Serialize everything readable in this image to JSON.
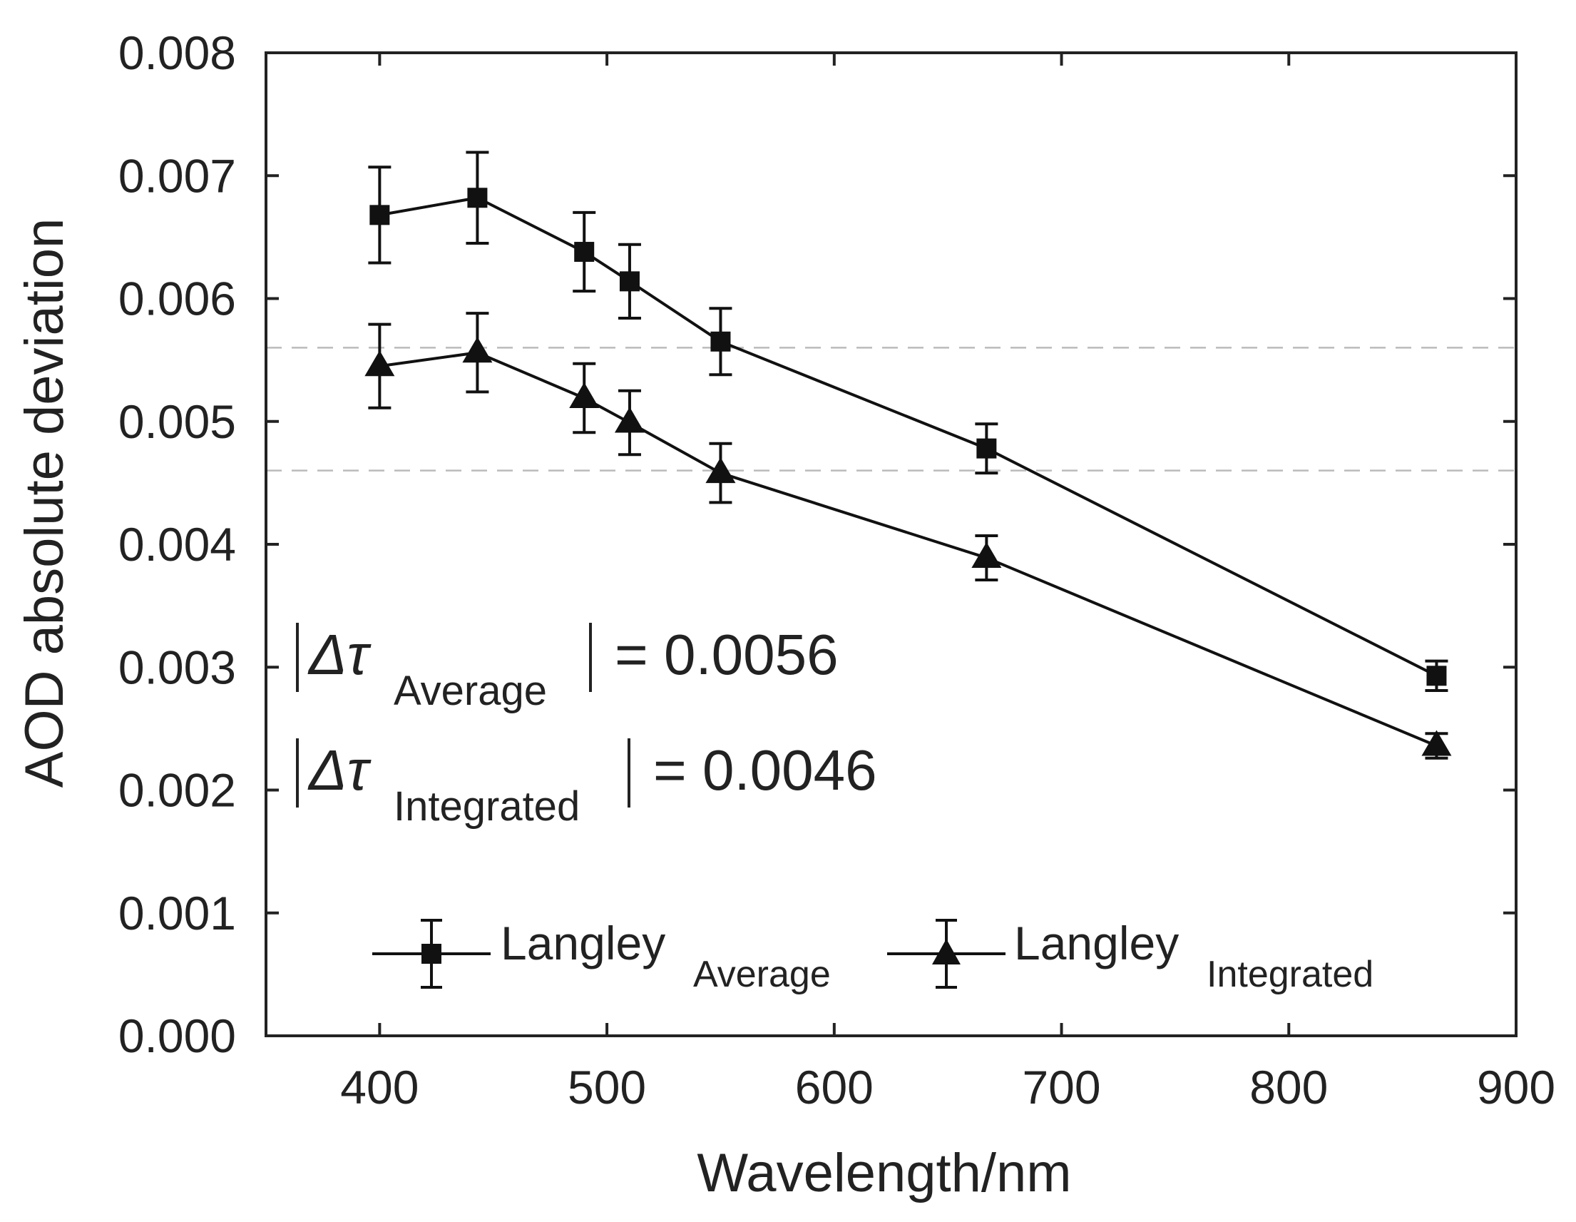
{
  "chart_data": {
    "type": "line",
    "xlabel": "Wavelength/nm",
    "ylabel": "AOD absolute deviation",
    "xlim": [
      350,
      900
    ],
    "ylim": [
      0,
      0.008
    ],
    "x_ticks": [
      400,
      500,
      600,
      700,
      800,
      900
    ],
    "x_tick_labels": [
      "400",
      "500",
      "600",
      "700",
      "800",
      "900"
    ],
    "y_ticks": [
      0,
      0.001,
      0.002,
      0.003,
      0.004,
      0.005,
      0.006,
      0.007,
      0.008
    ],
    "y_tick_labels": [
      "0.000",
      "0.001",
      "0.002",
      "0.003",
      "0.004",
      "0.005",
      "0.006",
      "0.007",
      "0.008"
    ],
    "x": [
      400,
      443,
      490,
      510,
      550,
      667,
      865
    ],
    "series": [
      {
        "name": "Langley_Average",
        "label_main": "Langley",
        "label_sub": "Average",
        "marker": "square",
        "values": [
          0.00668,
          0.00682,
          0.00638,
          0.00614,
          0.00565,
          0.00478,
          0.00293
        ],
        "errors": [
          0.00039,
          0.00037,
          0.00032,
          0.0003,
          0.00027,
          0.0002,
          0.00012
        ]
      },
      {
        "name": "Langley_Integrated",
        "label_main": "Langley",
        "label_sub": "Integrated",
        "marker": "triangle",
        "values": [
          0.00545,
          0.00556,
          0.00519,
          0.00499,
          0.00458,
          0.00389,
          0.00236
        ],
        "errors": [
          0.00034,
          0.00032,
          0.00028,
          0.00026,
          0.00024,
          0.00018,
          0.0001
        ]
      }
    ],
    "reference_lines": [
      0.0056,
      0.0046
    ],
    "annotations": [
      {
        "prefix": "Δτ",
        "sub": "Average",
        "suffix": "= 0.0056"
      },
      {
        "prefix": "Δτ",
        "sub": "Integrated",
        "suffix": "= 0.0046"
      }
    ],
    "legend_position": "bottom"
  },
  "colors": {
    "line": "#111111",
    "axis": "#222222",
    "reference": "#bbbbbb"
  }
}
